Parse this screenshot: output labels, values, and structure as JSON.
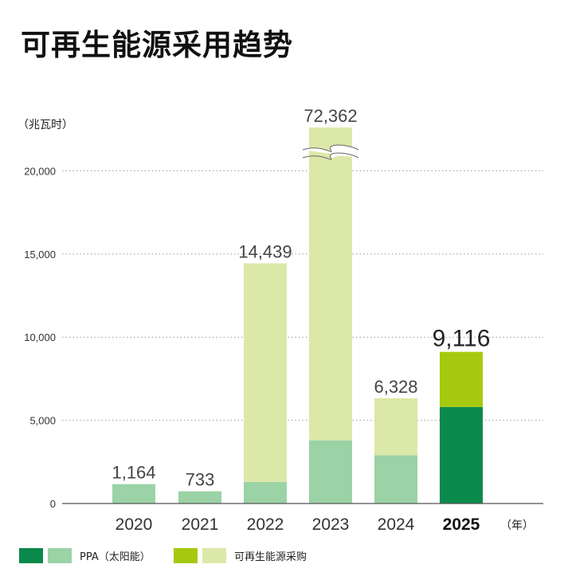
{
  "title": "可再生能源采用趋势",
  "colors": {
    "ppa_dark": "#0a8a4c",
    "ppa_light": "#9bd2a6",
    "renew_dark": "#a6c90f",
    "renew_light": "#dce8a8",
    "grid": "#9a9a9a",
    "axis": "#555555"
  },
  "chart_data": {
    "type": "bar",
    "stacked": true,
    "title": "可再生能源采用趋势",
    "ylabel": "（兆瓦时）",
    "xlabel": "（年）",
    "categories": [
      "2020",
      "2021",
      "2022",
      "2023",
      "2024",
      "2025"
    ],
    "highlight_category": "2025",
    "y_ticks": [
      0,
      5000,
      10000,
      15000,
      20000
    ],
    "y_tick_labels": [
      "0",
      "5,000",
      "10,000",
      "15,000",
      "20,000"
    ],
    "ylim": [
      0,
      22500
    ],
    "axis_break": "2023",
    "grid": true,
    "series": [
      {
        "name": "PPA（太阳能）",
        "values": [
          1164,
          733,
          1300,
          3800,
          2900,
          5800
        ]
      },
      {
        "name": "可再生能源采购",
        "values": [
          0,
          0,
          13139,
          68562,
          3428,
          3316
        ]
      }
    ],
    "totals": [
      1164,
      733,
      14439,
      72362,
      6328,
      9116
    ],
    "total_labels": [
      "1,164",
      "733",
      "14,439",
      "72,362",
      "6,328",
      "9,116"
    ],
    "legend_position": "bottom-left"
  }
}
